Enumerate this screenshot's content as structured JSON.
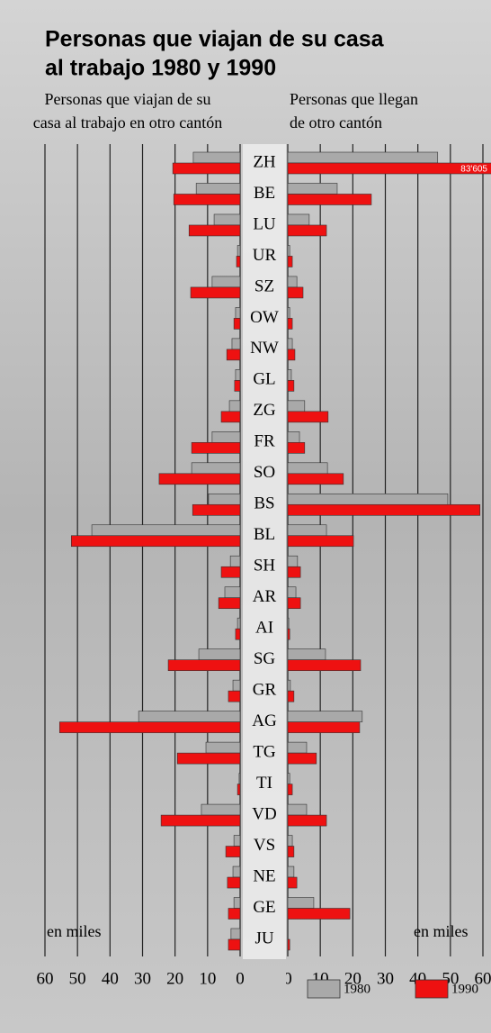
{
  "chart_data": {
    "type": "butterfly",
    "title": [
      "Personas que viajan de su casa",
      "al trabajo 1980 y 1990"
    ],
    "categories": [
      "ZH",
      "BE",
      "LU",
      "UR",
      "SZ",
      "OW",
      "NW",
      "GL",
      "ZG",
      "FR",
      "SO",
      "BS",
      "BL",
      "SH",
      "AR",
      "AI",
      "SG",
      "GR",
      "AG",
      "TG",
      "TI",
      "VD",
      "VS",
      "NE",
      "GE",
      "JU"
    ],
    "left": {
      "label": [
        "Personas que viajan de su",
        "casa al trabajo en otro cantón"
      ],
      "unit_label": "en miles",
      "xlim": [
        0,
        60
      ],
      "xticks": [
        0,
        10,
        20,
        30,
        40,
        50,
        60
      ]
    },
    "right": {
      "label": [
        "Personas que llegan",
        "de otro cantón"
      ],
      "unit_label": "en miles",
      "xlim": [
        0,
        60
      ],
      "xticks": [
        0,
        10,
        20,
        30,
        40,
        50,
        60
      ]
    },
    "grid": true,
    "series": [
      {
        "name": "1980",
        "color": "#a9a9a9",
        "left_values": [
          14.4,
          13.5,
          8,
          0.8,
          8.6,
          1.4,
          2.5,
          1.4,
          3.3,
          8.6,
          14.9,
          9.7,
          45.6,
          3,
          4.7,
          0.8,
          12.7,
          2.2,
          31.2,
          10.5,
          0.3,
          11.9,
          1.9,
          2.2,
          1.9,
          2.8
        ],
        "right_values": [
          46.1,
          15.2,
          6.6,
          0.6,
          2.8,
          0.6,
          1.4,
          1.1,
          5.2,
          3.6,
          12.2,
          49.2,
          11.9,
          3,
          2.5,
          0.3,
          11.6,
          0.8,
          22.9,
          5.8,
          0.6,
          5.8,
          1.4,
          1.9,
          8,
          0
        ]
      },
      {
        "name": "1990",
        "color": "#ee1111",
        "left_values": [
          20.7,
          20.4,
          15.7,
          1.1,
          15.2,
          1.9,
          4.1,
          1.7,
          5.8,
          14.9,
          24.9,
          14.6,
          51.9,
          5.8,
          6.6,
          1.4,
          22.1,
          3.6,
          55.5,
          19.3,
          0.8,
          24.3,
          4.4,
          3.9,
          3.6,
          3.6
        ],
        "right_values": [
          83.605,
          25.7,
          11.9,
          1.4,
          4.7,
          1.4,
          2.2,
          1.9,
          12.4,
          5.2,
          17.1,
          59.1,
          20.2,
          3.9,
          3.9,
          0.6,
          22.4,
          1.9,
          22.1,
          8.8,
          1.4,
          11.9,
          1.9,
          2.8,
          19.1,
          0.6
        ],
        "right_value_labels": [
          "83'605",
          null,
          null,
          null,
          null,
          null,
          null,
          null,
          null,
          null,
          null,
          null,
          null,
          null,
          null,
          null,
          null,
          null,
          null,
          null,
          null,
          null,
          null,
          null,
          null,
          null
        ]
      }
    ]
  }
}
